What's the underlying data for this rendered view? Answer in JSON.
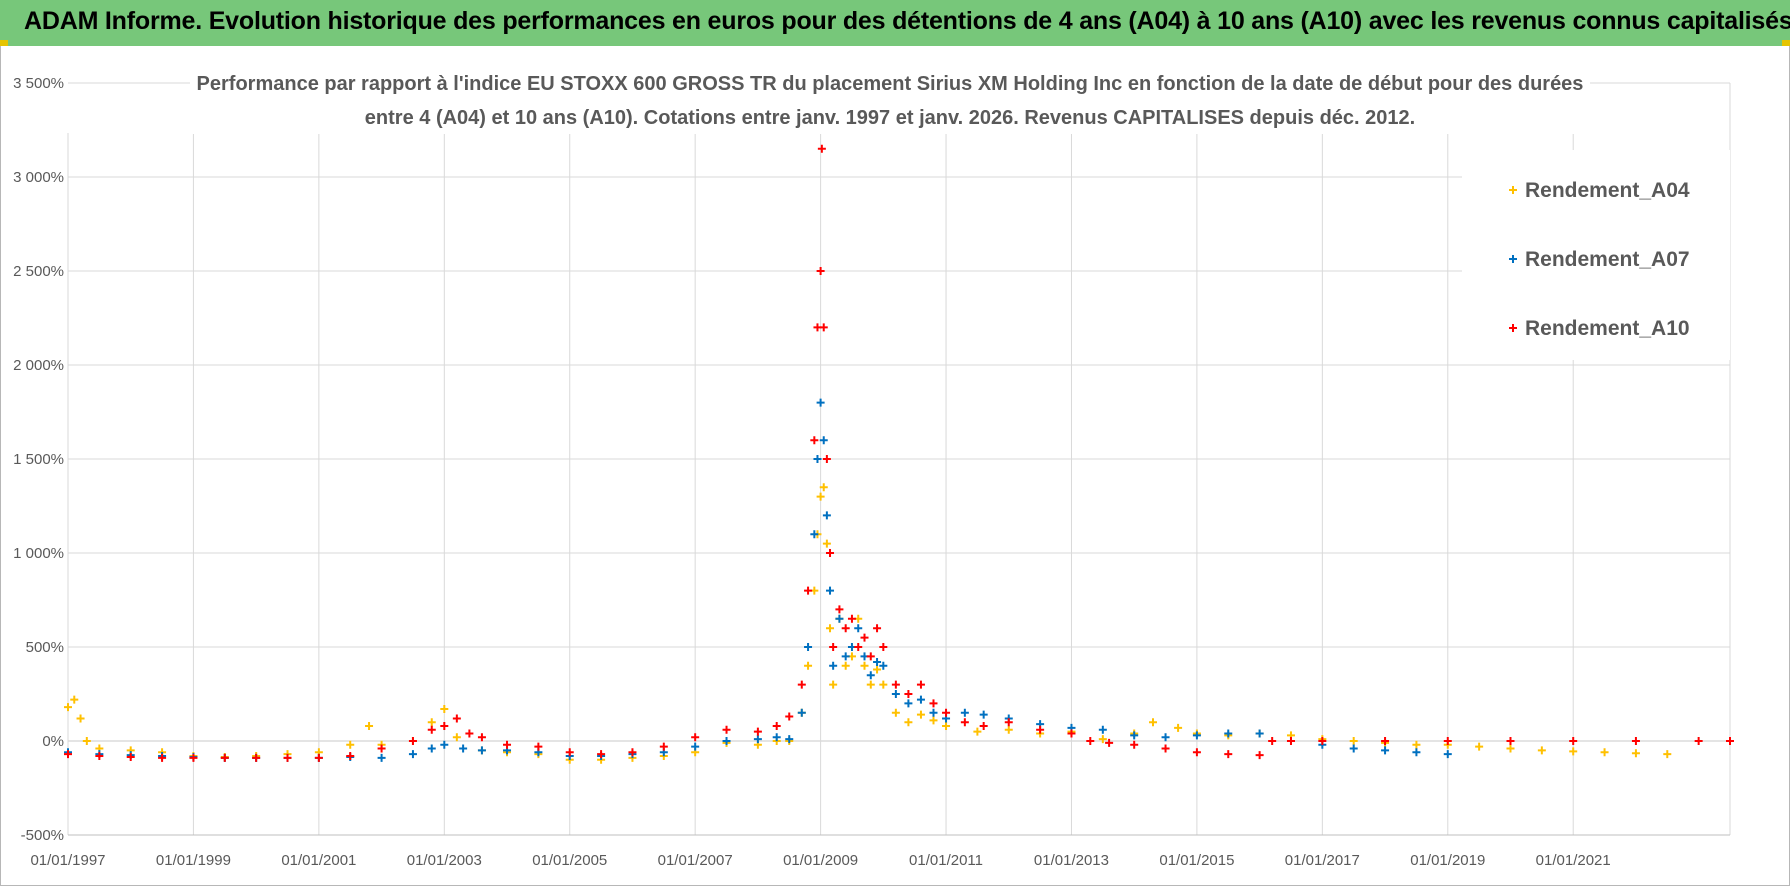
{
  "header": {
    "title": "ADAM Informe. Evolution historique des performances en euros pour des détentions de 4 ans (A04) à 10 ans (A10) avec les revenus connus capitalisés"
  },
  "chart_data": {
    "type": "scatter",
    "title_line1": "Performance par rapport à l'indice EU STOXX 600 GROSS TR  du placement Sirius XM Holding Inc en fonction de la date de début pour des durées",
    "title_line2": "entre 4 (A04) et 10 ans (A10).  Cotations entre janv. 1997 et janv. 2026. Revenus CAPITALISES depuis déc. 2012.",
    "xlabel": "",
    "ylabel": "",
    "xlim": [
      1997.0,
      2023.5
    ],
    "ylim": [
      -500,
      3500
    ],
    "y_ticks": [
      {
        "v": -500,
        "label": "-500%"
      },
      {
        "v": 0,
        "label": "0%"
      },
      {
        "v": 500,
        "label": "500%"
      },
      {
        "v": 1000,
        "label": "1 000%"
      },
      {
        "v": 1500,
        "label": "1 500%"
      },
      {
        "v": 2000,
        "label": "2 000%"
      },
      {
        "v": 2500,
        "label": "2 500%"
      },
      {
        "v": 3000,
        "label": "3 000%"
      },
      {
        "v": 3500,
        "label": "3 500%"
      }
    ],
    "x_ticks": [
      {
        "v": 1997,
        "label": "01/01/1997"
      },
      {
        "v": 1999,
        "label": "01/01/1999"
      },
      {
        "v": 2001,
        "label": "01/01/2001"
      },
      {
        "v": 2003,
        "label": "01/01/2003"
      },
      {
        "v": 2005,
        "label": "01/01/2005"
      },
      {
        "v": 2007,
        "label": "01/01/2007"
      },
      {
        "v": 2009,
        "label": "01/01/2009"
      },
      {
        "v": 2011,
        "label": "01/01/2011"
      },
      {
        "v": 2013,
        "label": "01/01/2013"
      },
      {
        "v": 2015,
        "label": "01/01/2015"
      },
      {
        "v": 2017,
        "label": "01/01/2017"
      },
      {
        "v": 2019,
        "label": "01/01/2019"
      },
      {
        "v": 2021,
        "label": "01/01/2021"
      }
    ],
    "grid": true,
    "legend_position": "top-right",
    "marker": "+",
    "series": [
      {
        "name": "Rendement_A04",
        "color": "#ffc000",
        "points": [
          [
            1997.0,
            180
          ],
          [
            1997.1,
            220
          ],
          [
            1997.2,
            120
          ],
          [
            1997.3,
            0
          ],
          [
            1997.5,
            -40
          ],
          [
            1998.0,
            -50
          ],
          [
            1998.5,
            -60
          ],
          [
            1999.0,
            -80
          ],
          [
            1999.5,
            -85
          ],
          [
            2000.0,
            -80
          ],
          [
            2000.5,
            -70
          ],
          [
            2001.0,
            -60
          ],
          [
            2001.5,
            -20
          ],
          [
            2001.8,
            80
          ],
          [
            2002.0,
            -20
          ],
          [
            2002.5,
            0
          ],
          [
            2002.8,
            100
          ],
          [
            2003.0,
            170
          ],
          [
            2003.2,
            20
          ],
          [
            2003.6,
            -50
          ],
          [
            2004.0,
            -60
          ],
          [
            2004.5,
            -70
          ],
          [
            2005.0,
            -100
          ],
          [
            2005.5,
            -100
          ],
          [
            2006.0,
            -90
          ],
          [
            2006.5,
            -80
          ],
          [
            2007.0,
            -60
          ],
          [
            2007.5,
            -10
          ],
          [
            2008.0,
            -20
          ],
          [
            2008.3,
            0
          ],
          [
            2008.5,
            0
          ],
          [
            2008.7,
            150
          ],
          [
            2008.8,
            400
          ],
          [
            2008.9,
            800
          ],
          [
            2008.95,
            1100
          ],
          [
            2009.0,
            1300
          ],
          [
            2009.05,
            1350
          ],
          [
            2009.1,
            1050
          ],
          [
            2009.15,
            600
          ],
          [
            2009.2,
            300
          ],
          [
            2009.3,
            650
          ],
          [
            2009.4,
            400
          ],
          [
            2009.5,
            450
          ],
          [
            2009.6,
            650
          ],
          [
            2009.7,
            400
          ],
          [
            2009.8,
            300
          ],
          [
            2009.9,
            380
          ],
          [
            2010.0,
            300
          ],
          [
            2010.2,
            150
          ],
          [
            2010.4,
            100
          ],
          [
            2010.6,
            140
          ],
          [
            2010.8,
            110
          ],
          [
            2011.0,
            80
          ],
          [
            2011.5,
            50
          ],
          [
            2012.0,
            60
          ],
          [
            2012.5,
            40
          ],
          [
            2013.0,
            50
          ],
          [
            2013.5,
            10
          ],
          [
            2014.0,
            40
          ],
          [
            2014.3,
            100
          ],
          [
            2014.7,
            70
          ],
          [
            2015.0,
            40
          ],
          [
            2015.5,
            30
          ],
          [
            2016.0,
            40
          ],
          [
            2016.5,
            30
          ],
          [
            2017.0,
            10
          ],
          [
            2017.5,
            0
          ],
          [
            2018.0,
            -10
          ],
          [
            2018.5,
            -20
          ],
          [
            2019.0,
            -20
          ],
          [
            2019.5,
            -30
          ],
          [
            2020.0,
            -40
          ],
          [
            2020.5,
            -50
          ],
          [
            2021.0,
            -55
          ],
          [
            2021.5,
            -60
          ],
          [
            2022.0,
            -65
          ],
          [
            2022.5,
            -70
          ]
        ]
      },
      {
        "name": "Rendement_A07",
        "color": "#0070c0",
        "points": [
          [
            1997.0,
            -60
          ],
          [
            1997.5,
            -70
          ],
          [
            1998.0,
            -75
          ],
          [
            1998.5,
            -80
          ],
          [
            1999.0,
            -85
          ],
          [
            1999.5,
            -90
          ],
          [
            2000.0,
            -90
          ],
          [
            2000.5,
            -90
          ],
          [
            2001.0,
            -90
          ],
          [
            2001.5,
            -85
          ],
          [
            2002.0,
            -90
          ],
          [
            2002.5,
            -70
          ],
          [
            2002.8,
            -40
          ],
          [
            2003.0,
            -20
          ],
          [
            2003.3,
            -40
          ],
          [
            2003.6,
            -50
          ],
          [
            2004.0,
            -50
          ],
          [
            2004.5,
            -60
          ],
          [
            2005.0,
            -80
          ],
          [
            2005.5,
            -80
          ],
          [
            2006.0,
            -70
          ],
          [
            2006.5,
            -60
          ],
          [
            2007.0,
            -30
          ],
          [
            2007.5,
            0
          ],
          [
            2008.0,
            10
          ],
          [
            2008.3,
            20
          ],
          [
            2008.5,
            10
          ],
          [
            2008.7,
            150
          ],
          [
            2008.8,
            500
          ],
          [
            2008.9,
            1100
          ],
          [
            2008.95,
            1500
          ],
          [
            2009.0,
            1800
          ],
          [
            2009.05,
            1600
          ],
          [
            2009.1,
            1200
          ],
          [
            2009.15,
            800
          ],
          [
            2009.2,
            400
          ],
          [
            2009.3,
            650
          ],
          [
            2009.4,
            450
          ],
          [
            2009.5,
            500
          ],
          [
            2009.6,
            600
          ],
          [
            2009.7,
            450
          ],
          [
            2009.8,
            350
          ],
          [
            2009.9,
            420
          ],
          [
            2010.0,
            400
          ],
          [
            2010.2,
            250
          ],
          [
            2010.4,
            200
          ],
          [
            2010.6,
            220
          ],
          [
            2010.8,
            150
          ],
          [
            2011.0,
            120
          ],
          [
            2011.3,
            150
          ],
          [
            2011.6,
            140
          ],
          [
            2012.0,
            120
          ],
          [
            2012.5,
            90
          ],
          [
            2013.0,
            70
          ],
          [
            2013.5,
            60
          ],
          [
            2014.0,
            30
          ],
          [
            2014.5,
            20
          ],
          [
            2015.0,
            30
          ],
          [
            2015.5,
            40
          ],
          [
            2016.0,
            40
          ],
          [
            2016.5,
            0
          ],
          [
            2017.0,
            -20
          ],
          [
            2017.5,
            -40
          ],
          [
            2018.0,
            -50
          ],
          [
            2018.5,
            -60
          ],
          [
            2019.0,
            -70
          ]
        ]
      },
      {
        "name": "Rendement_A10",
        "color": "#ff0000",
        "points": [
          [
            1997.0,
            -70
          ],
          [
            1997.5,
            -80
          ],
          [
            1998.0,
            -85
          ],
          [
            1998.5,
            -90
          ],
          [
            1999.0,
            -90
          ],
          [
            1999.5,
            -90
          ],
          [
            2000.0,
            -90
          ],
          [
            2000.5,
            -90
          ],
          [
            2001.0,
            -90
          ],
          [
            2001.5,
            -80
          ],
          [
            2002.0,
            -40
          ],
          [
            2002.5,
            0
          ],
          [
            2002.8,
            60
          ],
          [
            2003.0,
            80
          ],
          [
            2003.2,
            120
          ],
          [
            2003.4,
            40
          ],
          [
            2003.6,
            20
          ],
          [
            2004.0,
            -20
          ],
          [
            2004.5,
            -30
          ],
          [
            2005.0,
            -60
          ],
          [
            2005.5,
            -70
          ],
          [
            2006.0,
            -60
          ],
          [
            2006.5,
            -30
          ],
          [
            2007.0,
            20
          ],
          [
            2007.5,
            60
          ],
          [
            2008.0,
            50
          ],
          [
            2008.3,
            80
          ],
          [
            2008.5,
            130
          ],
          [
            2008.7,
            300
          ],
          [
            2008.8,
            800
          ],
          [
            2008.9,
            1600
          ],
          [
            2008.95,
            2200
          ],
          [
            2009.0,
            2500
          ],
          [
            2009.02,
            3150
          ],
          [
            2009.05,
            2200
          ],
          [
            2009.1,
            1500
          ],
          [
            2009.15,
            1000
          ],
          [
            2009.2,
            500
          ],
          [
            2009.3,
            700
          ],
          [
            2009.4,
            600
          ],
          [
            2009.5,
            650
          ],
          [
            2009.6,
            500
          ],
          [
            2009.7,
            550
          ],
          [
            2009.8,
            450
          ],
          [
            2009.9,
            600
          ],
          [
            2010.0,
            500
          ],
          [
            2010.2,
            300
          ],
          [
            2010.4,
            250
          ],
          [
            2010.6,
            300
          ],
          [
            2010.8,
            200
          ],
          [
            2011.0,
            150
          ],
          [
            2011.3,
            100
          ],
          [
            2011.6,
            80
          ],
          [
            2012.0,
            100
          ],
          [
            2012.5,
            60
          ],
          [
            2013.0,
            40
          ],
          [
            2013.3,
            0
          ],
          [
            2013.6,
            -10
          ],
          [
            2014.0,
            -20
          ],
          [
            2014.5,
            -40
          ],
          [
            2015.0,
            -60
          ],
          [
            2015.5,
            -70
          ],
          [
            2016.0,
            -75
          ],
          [
            2016.2,
            0
          ],
          [
            2016.5,
            0
          ],
          [
            2017.0,
            0
          ],
          [
            2018.0,
            0
          ],
          [
            2019.0,
            0
          ],
          [
            2020.0,
            0
          ],
          [
            2021.0,
            0
          ],
          [
            2022.0,
            0
          ],
          [
            2023.0,
            0
          ],
          [
            2023.5,
            0
          ]
        ]
      }
    ]
  }
}
